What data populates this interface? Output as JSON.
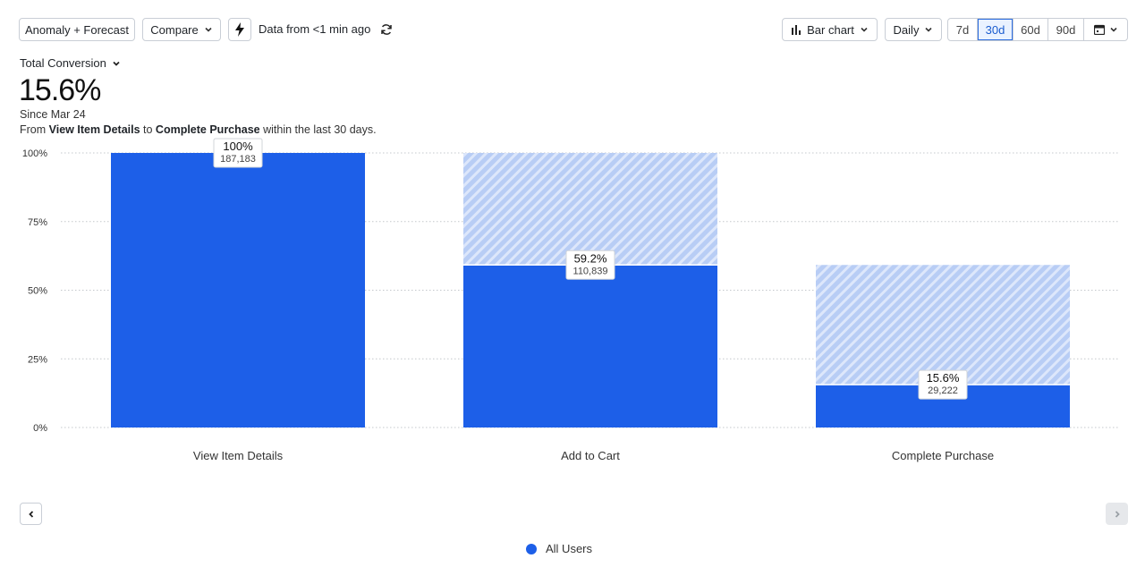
{
  "toolbar": {
    "anomaly_label": "Anomaly + Forecast",
    "compare_label": "Compare",
    "data_freshness": "Data from <1 min ago",
    "chart_type_label": "Bar chart",
    "interval_label": "Daily",
    "ranges": [
      "7d",
      "30d",
      "60d",
      "90d"
    ],
    "active_range": "30d"
  },
  "metric": {
    "name": "Total Conversion",
    "value": "15.6%",
    "since": "Since Mar 24",
    "desc_prefix": "From ",
    "desc_from": "View Item Details",
    "desc_mid": " to ",
    "desc_to": "Complete Purchase",
    "desc_suffix": " within the last 30 days."
  },
  "legend": {
    "label": "All Users",
    "color": "#1d5fe8"
  },
  "chart_data": {
    "type": "bar",
    "categories": [
      "View Item Details",
      "Add to Cart",
      "Complete Purchase"
    ],
    "series": [
      {
        "name": "All Users",
        "values": [
          100,
          59.2,
          15.6
        ],
        "counts": [
          "187,183",
          "110,839",
          "29,222"
        ],
        "labels": [
          "100%",
          "59.2%",
          "15.6%"
        ],
        "previous_step": [
          100,
          100,
          59.2
        ]
      }
    ],
    "ylim": [
      0,
      100
    ],
    "yticks": [
      "0%",
      "25%",
      "50%",
      "75%",
      "100%"
    ],
    "ytick_values": [
      0,
      25,
      50,
      75,
      100
    ],
    "grid": true,
    "colors": {
      "bar": "#1d5fe8",
      "dropoff": "#b8cdf5",
      "dropoff_stripe": "#ffffff"
    }
  }
}
